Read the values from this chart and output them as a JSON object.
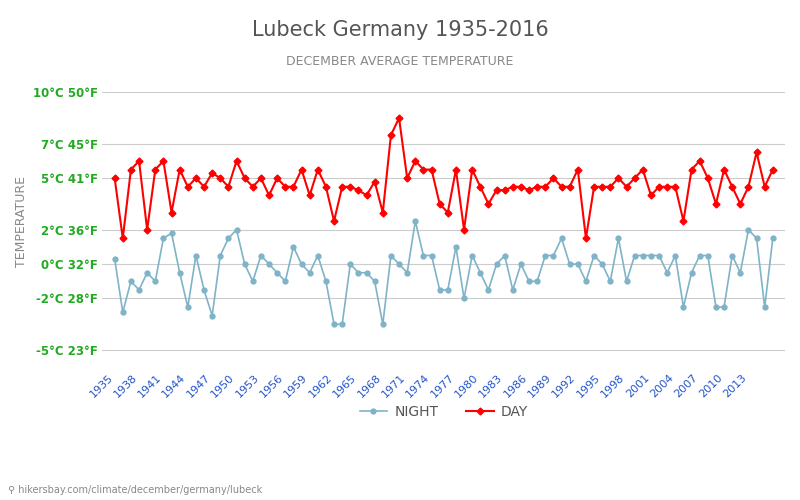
{
  "title": "Lubeck Germany 1935-2016",
  "subtitle": "DECEMBER AVERAGE TEMPERATURE",
  "ylabel": "TEMPERATURE",
  "xlabel_url": "hikersbay.com/climate/december/germany/lubeck",
  "legend_night": "NIGHT",
  "legend_day": "DAY",
  "years": [
    1935,
    1936,
    1937,
    1938,
    1939,
    1940,
    1941,
    1942,
    1943,
    1944,
    1945,
    1946,
    1947,
    1948,
    1949,
    1950,
    1951,
    1952,
    1953,
    1954,
    1955,
    1956,
    1957,
    1958,
    1959,
    1960,
    1961,
    1962,
    1963,
    1964,
    1965,
    1966,
    1967,
    1968,
    1969,
    1970,
    1971,
    1972,
    1973,
    1974,
    1975,
    1976,
    1977,
    1978,
    1979,
    1980,
    1981,
    1982,
    1983,
    1984,
    1985,
    1986,
    1987,
    1988,
    1989,
    1990,
    1991,
    1992,
    1993,
    1994,
    1995,
    1996,
    1997,
    1998,
    1999,
    2000,
    2001,
    2002,
    2003,
    2004,
    2005,
    2006,
    2007,
    2008,
    2009,
    2010,
    2011,
    2012,
    2013,
    2014,
    2015,
    2016
  ],
  "day": [
    5.0,
    1.5,
    5.5,
    6.0,
    2.0,
    5.5,
    6.0,
    3.0,
    5.5,
    4.5,
    5.0,
    4.5,
    5.3,
    5.0,
    4.5,
    6.0,
    5.0,
    4.5,
    5.0,
    4.0,
    5.0,
    4.5,
    4.5,
    5.5,
    4.0,
    5.5,
    4.5,
    2.5,
    4.5,
    4.5,
    4.3,
    4.0,
    4.8,
    3.0,
    7.5,
    8.5,
    5.0,
    6.0,
    5.5,
    5.5,
    3.5,
    3.0,
    5.5,
    2.0,
    5.5,
    4.5,
    3.5,
    4.3,
    4.3,
    4.5,
    4.5,
    4.3,
    4.5,
    4.5,
    5.0,
    4.5,
    4.5,
    5.5,
    1.5,
    4.5,
    4.5,
    4.5,
    5.0,
    4.5,
    5.0,
    5.5,
    4.0,
    4.5,
    4.5,
    4.5,
    2.5,
    5.5,
    6.0,
    5.0,
    3.5,
    5.5,
    4.5,
    3.5,
    4.5,
    6.5,
    4.5,
    5.5
  ],
  "night": [
    0.3,
    -2.8,
    -1.0,
    -1.5,
    -0.5,
    -1.0,
    1.5,
    1.8,
    -0.5,
    -2.5,
    0.5,
    -1.5,
    -3.0,
    0.5,
    1.5,
    2.0,
    0.0,
    -1.0,
    0.5,
    0.0,
    -0.5,
    -1.0,
    1.0,
    0.0,
    -0.5,
    0.5,
    -1.0,
    -3.5,
    -3.5,
    0.0,
    -0.5,
    -0.5,
    -1.0,
    -3.5,
    0.5,
    0.0,
    -0.5,
    2.5,
    0.5,
    0.5,
    -1.5,
    -1.5,
    1.0,
    -2.0,
    0.5,
    -0.5,
    -1.5,
    0.0,
    0.5,
    -1.5,
    0.0,
    -1.0,
    -1.0,
    0.5,
    0.5,
    1.5,
    0.0,
    0.0,
    -1.0,
    0.5,
    0.0,
    -1.0,
    1.5,
    -1.0,
    0.5,
    0.5,
    0.5,
    0.5,
    -0.5,
    0.5,
    -2.5,
    -0.5,
    0.5,
    0.5,
    -2.5,
    -2.5,
    0.5,
    -0.5,
    2.0,
    1.5,
    -2.5,
    1.5
  ],
  "ylim": [
    -6,
    11
  ],
  "yticks_c": [
    -5,
    -2,
    0,
    2,
    5,
    7,
    10
  ],
  "yticks_f": [
    23,
    28,
    32,
    36,
    41,
    45,
    50
  ],
  "xtick_years": [
    1935,
    1938,
    1941,
    1944,
    1947,
    1950,
    1953,
    1956,
    1959,
    1962,
    1965,
    1968,
    1971,
    1974,
    1977,
    1980,
    1983,
    1986,
    1989,
    1992,
    1995,
    1998,
    2001,
    2004,
    2007,
    2010,
    2013
  ],
  "day_color": "#ff0000",
  "night_color": "#7fb3c8",
  "title_color": "#555555",
  "subtitle_color": "#888888",
  "ylabel_color": "#888888",
  "ytick_c_color": "#22aa22",
  "ytick_f_color": "#2255cc",
  "xtick_color": "#2255cc",
  "grid_color": "#cccccc",
  "background_color": "#ffffff",
  "url_color": "#888888"
}
